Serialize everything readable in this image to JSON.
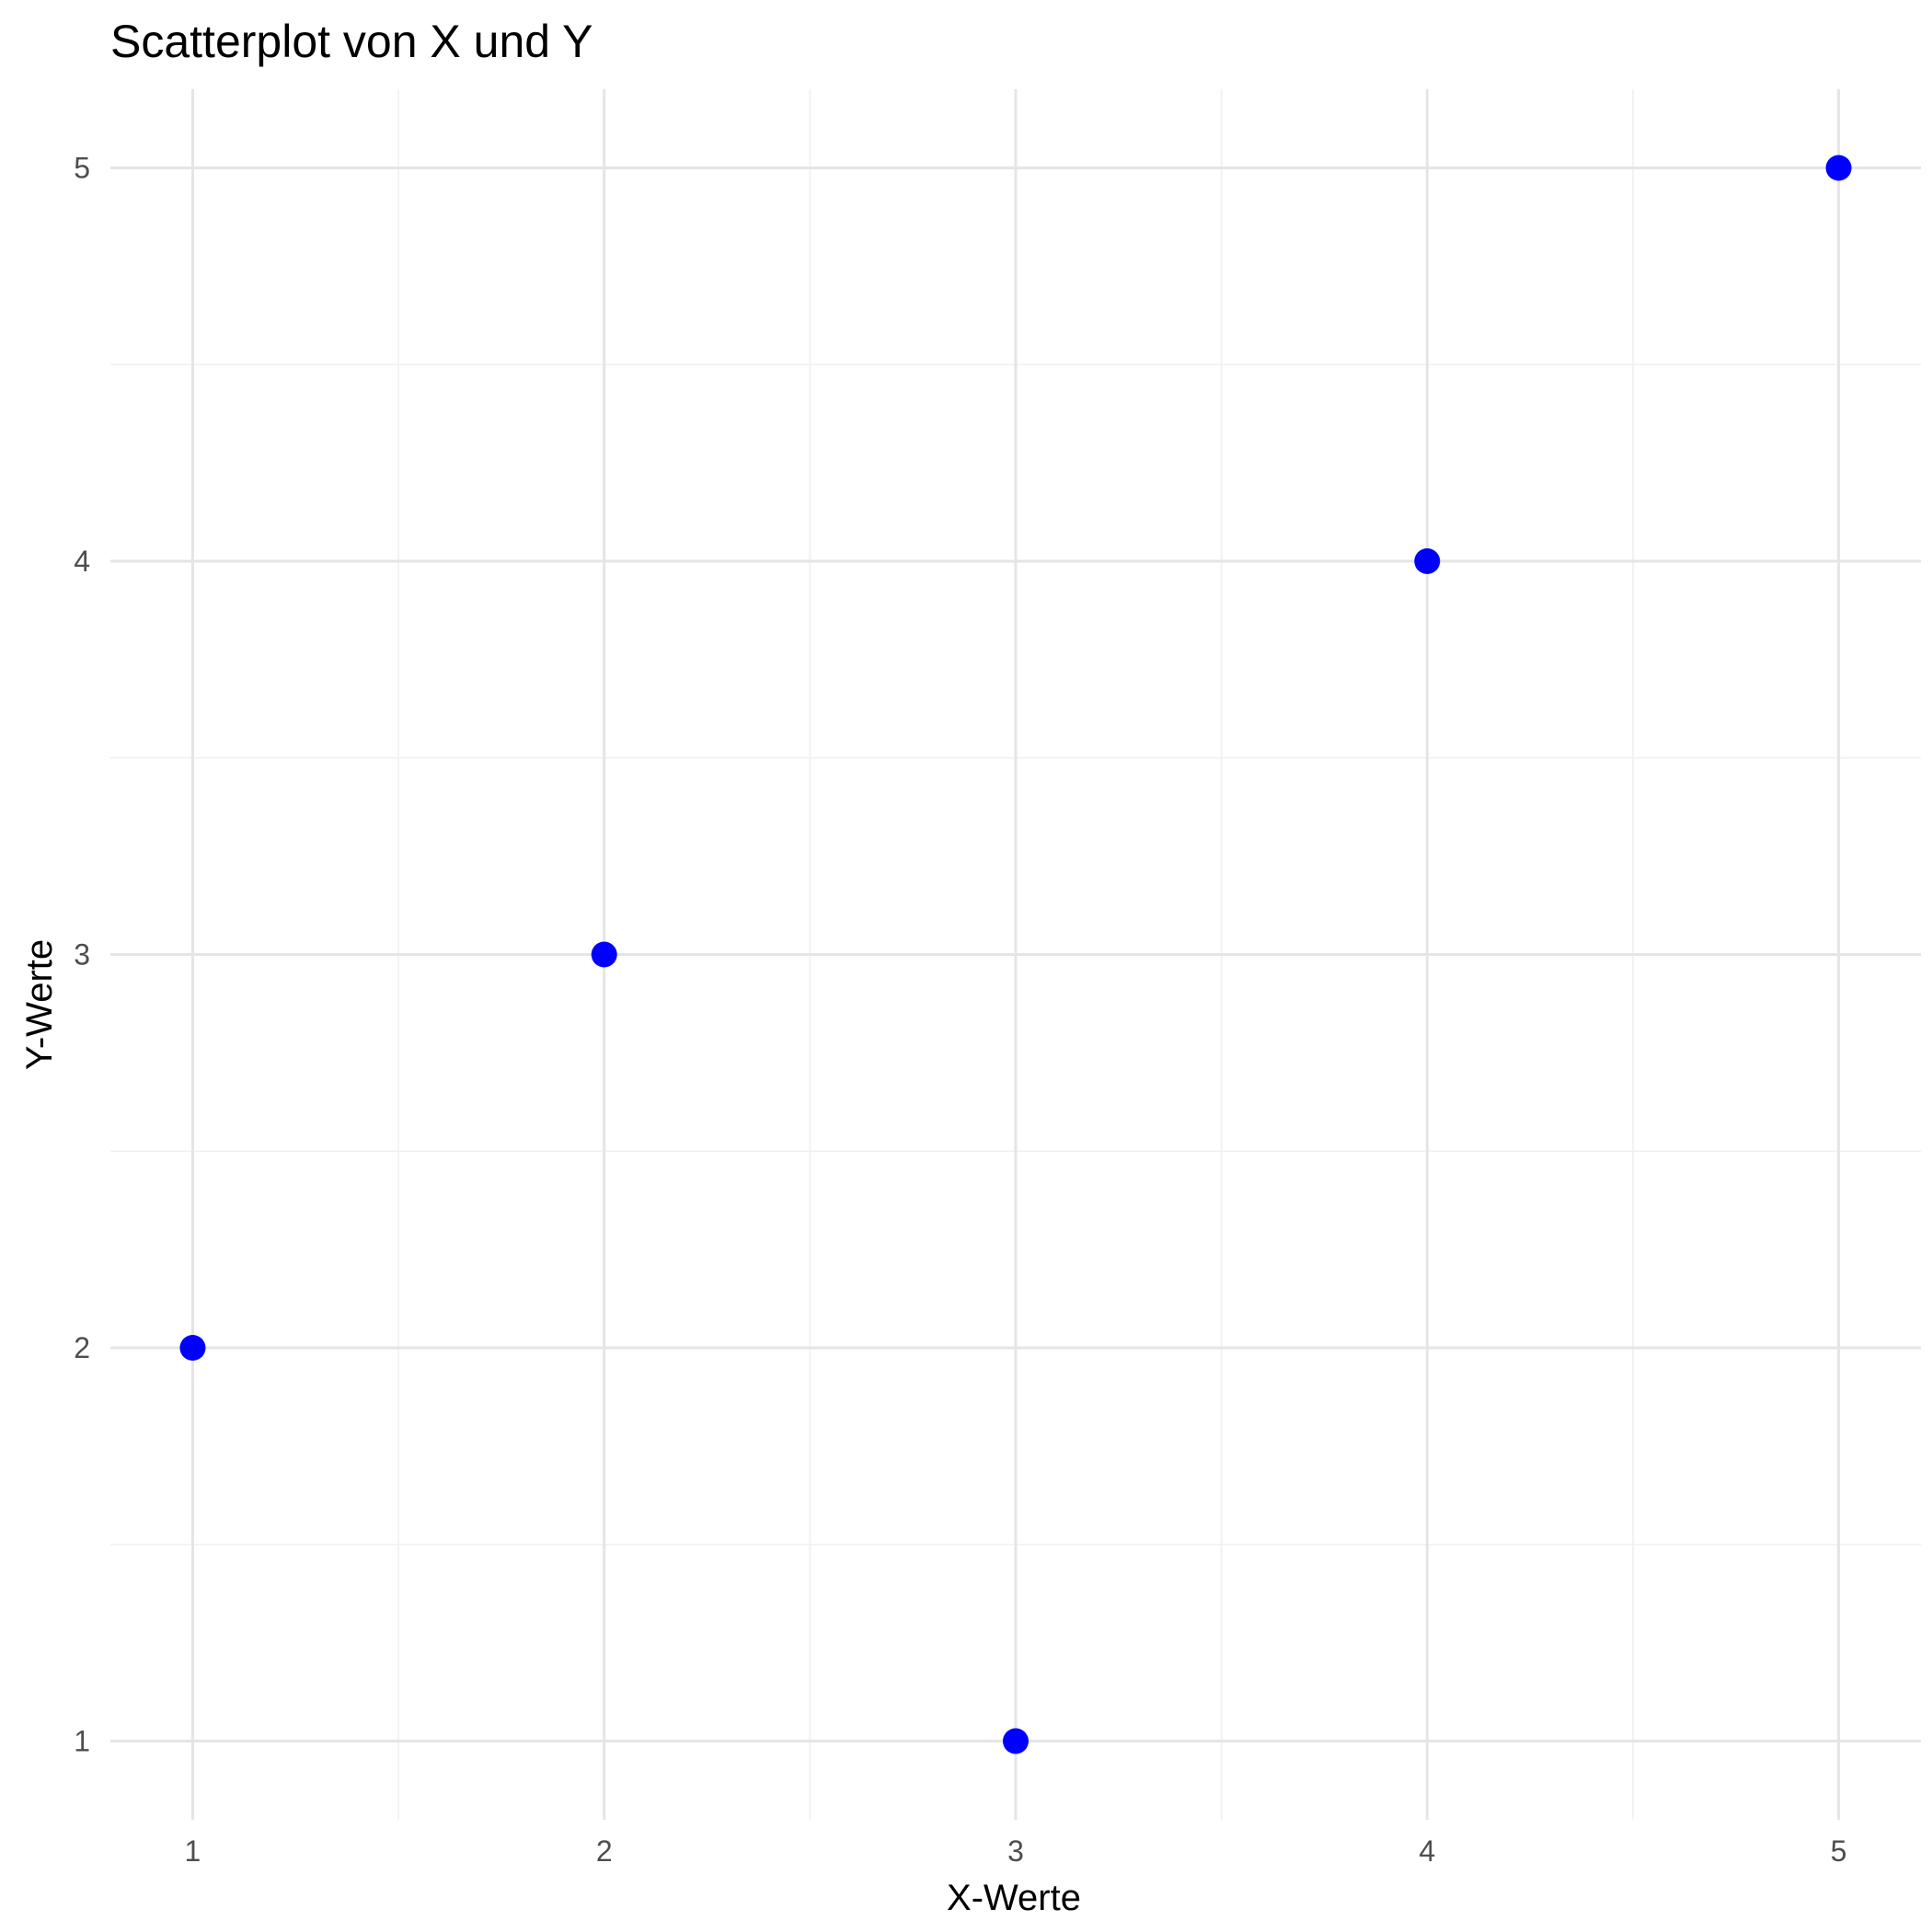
{
  "chart_data": {
    "type": "scatter",
    "title": "Scatterplot von X und Y",
    "xlabel": "X-Werte",
    "ylabel": "Y-Werte",
    "x": [
      1,
      2,
      3,
      4,
      5
    ],
    "y": [
      2,
      3,
      1,
      4,
      5
    ],
    "xlim": [
      0.8,
      5.2
    ],
    "ylim": [
      0.8,
      5.2
    ],
    "xticks": [
      1,
      2,
      3,
      4,
      5
    ],
    "yticks": [
      1,
      2,
      3,
      4,
      5
    ],
    "xtick_labels": [
      "1",
      "2",
      "3",
      "4",
      "5"
    ],
    "ytick_labels": [
      "1",
      "2",
      "3",
      "4",
      "5"
    ],
    "grid": true,
    "legend": "none",
    "point_color": "#0000ff"
  }
}
